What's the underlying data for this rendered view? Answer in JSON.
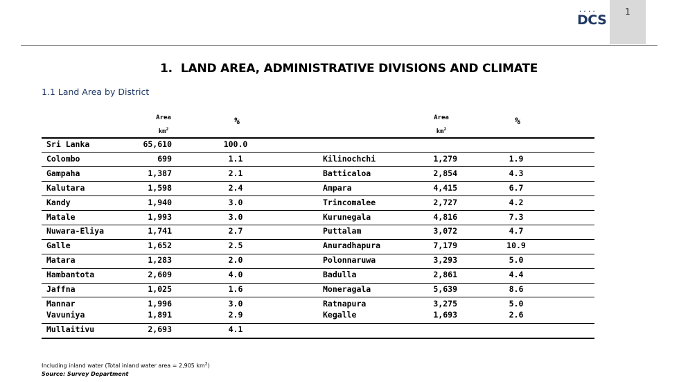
{
  "page": {
    "number": "1"
  },
  "logo": {
    "text": "DCS",
    "dots": "• • • •"
  },
  "title": {
    "number": "1.",
    "text": "LAND AREA, ADMINISTRATIVE DIVISIONS AND CLIMATE"
  },
  "section": {
    "title": "1.1 Land Area by District"
  },
  "headers": {
    "area_label": "Area",
    "area_unit": "km",
    "area_unit_sup": "2",
    "pct_label": "%"
  },
  "total": {
    "district": "Sri Lanka",
    "area": "65,610",
    "pct": "100.0"
  },
  "rows": [
    {
      "left": {
        "district": "Colombo",
        "area": "699",
        "pct": "1.1"
      },
      "right": {
        "district": "Kilinochchi",
        "area": "1,279",
        "pct": "1.9"
      }
    },
    {
      "left": {
        "district": "Gampaha",
        "area": "1,387",
        "pct": "2.1"
      },
      "right": {
        "district": "Batticaloa",
        "area": "2,854",
        "pct": "4.3"
      }
    },
    {
      "left": {
        "district": "Kalutara",
        "area": "1,598",
        "pct": "2.4"
      },
      "right": {
        "district": "Ampara",
        "area": "4,415",
        "pct": "6.7"
      }
    },
    {
      "left": {
        "district": "Kandy",
        "area": "1,940",
        "pct": "3.0"
      },
      "right": {
        "district": "Trincomalee",
        "area": "2,727",
        "pct": "4.2"
      }
    },
    {
      "left": {
        "district": "Matale",
        "area": "1,993",
        "pct": "3.0"
      },
      "right": {
        "district": "Kurunegala",
        "area": "4,816",
        "pct": "7.3"
      }
    },
    {
      "left": {
        "district": "Nuwara-Eliya",
        "area": "1,741",
        "pct": "2.7"
      },
      "right": {
        "district": "Puttalam",
        "area": "3,072",
        "pct": "4.7"
      }
    },
    {
      "left": {
        "district": "Galle",
        "area": "1,652",
        "pct": "2.5"
      },
      "right": {
        "district": "Anuradhapura",
        "area": "7,179",
        "pct": "10.9"
      }
    },
    {
      "left": {
        "district": "Matara",
        "area": "1,283",
        "pct": "2.0"
      },
      "right": {
        "district": "Polonnaruwa",
        "area": "3,293",
        "pct": "5.0"
      }
    },
    {
      "left": {
        "district": "Hambantota",
        "area": "2,609",
        "pct": "4.0"
      },
      "right": {
        "district": "Badulla",
        "area": "2,861",
        "pct": "4.4"
      }
    },
    {
      "left": {
        "district": "Jaffna",
        "area": "1,025",
        "pct": "1.6"
      },
      "right": {
        "district": "Moneragala",
        "area": "5,639",
        "pct": "8.6"
      }
    },
    {
      "left": {
        "district": "Mannar",
        "area": "1,996",
        "pct": "3.0"
      },
      "right": {
        "district": "Ratnapura",
        "area": "3,275",
        "pct": "5.0"
      }
    },
    {
      "left": {
        "district": "Vavuniya",
        "area": "1,891",
        "pct": "2.9"
      },
      "right": {
        "district": "Kegalle",
        "area": "1,693",
        "pct": "2.6"
      }
    },
    {
      "left": {
        "district": "Mullaitivu",
        "area": "2,693",
        "pct": "4.1"
      },
      "right": {
        "district": "",
        "area": "",
        "pct": ""
      }
    }
  ],
  "footnotes": {
    "note_prefix": "Including inland water (Total  inland water area = 2,905 km",
    "note_sup": "2",
    "note_suffix": ")",
    "source": "Source: Survey Department"
  }
}
